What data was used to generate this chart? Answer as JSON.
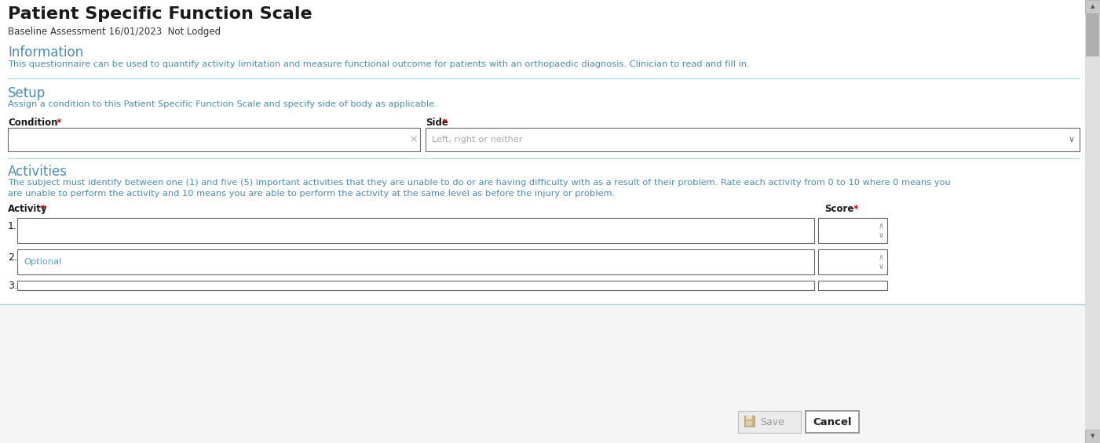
{
  "title": "Patient Specific Function Scale",
  "subtitle": "Baseline Assessment 16/01/2023  Not Lodged",
  "section1_header": "Information",
  "section1_text": "This questionnaire can be used to quantify activity limitation and measure functional outcome for patients with an orthopaedic diagnosis. Clinician to read and fill in.",
  "section2_header": "Setup",
  "section2_text": "Assign a condition to this Patient Specific Function Scale and specify side of body as applicable.",
  "condition_label": "Condition",
  "side_label": "Side",
  "side_placeholder": "Left, right or neither",
  "section3_header": "Activities",
  "section3_line1": "The subject must identify between one (1) and five (5) important activities that they are unable to do or are having difficulty with as a result of their problem. Rate each activity from 0 to 10 where 0 means you",
  "section3_line2": "are unable to perform the activity and 10 means you are able to perform the activity at the same level as before the injury or problem.",
  "activity_label": "Activity",
  "score_label": "Score",
  "row2_placeholder": "Optional",
  "save_label": "Save",
  "cancel_label": "Cancel",
  "bg_color": "#ffffff",
  "header_color": "#1a1a1a",
  "subtitle_color": "#333333",
  "section_header_color": "#4a8db5",
  "section_text_color": "#4a8db5",
  "label_color": "#1a1a1a",
  "asterisk_color": "#cc0000",
  "placeholder_color": "#5a9fc8",
  "divider_color": "#aad4e0",
  "border_color": "#666666",
  "scrollbar_bg": "#d0d0d0",
  "scrollbar_thumb": "#aaaaaa",
  "scrollbar_btn": "#cccccc",
  "button_save_bg": "#ebebeb",
  "button_save_border": "#bbbbbb",
  "button_cancel_bg": "#ffffff",
  "button_cancel_border": "#888888",
  "footer_bg": "#f5f5f5",
  "save_text_color": "#999999",
  "cancel_text_color": "#222222",
  "save_icon_color": "#c0a060",
  "spinbox_arrow_color": "#888888",
  "dropdown_arrow_color": "#666666"
}
